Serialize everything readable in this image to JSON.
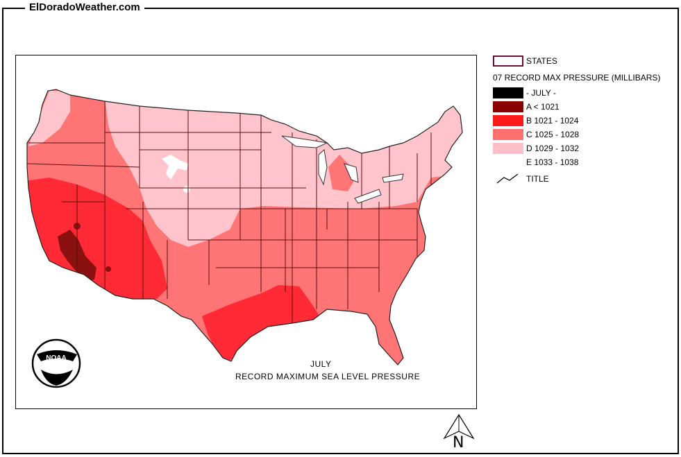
{
  "site": {
    "title": "ElDoradoWeather.com"
  },
  "map": {
    "caption_month": "JULY",
    "caption_title": "RECORD MAXIMUM SEA LEVEL PRESSURE",
    "logo_text": "NOAA",
    "north_label": "N"
  },
  "legend": {
    "states_label": "STATES",
    "layer_title": "07 RECORD MAX PRESSURE (MILLIBARS)",
    "items": [
      {
        "label": "- JULY -",
        "color": "#000000"
      },
      {
        "label": "A < 1021",
        "color": "#8b0000"
      },
      {
        "label": "B 1021 - 1024",
        "color": "#ff1a1a"
      },
      {
        "label": "C 1025 - 1028",
        "color": "#ff7070"
      },
      {
        "label": "D 1029 - 1032",
        "color": "#ffbfc8"
      },
      {
        "label": "E 1033 - 1038",
        "color": "#ffffff"
      }
    ],
    "title_line_label": "TITLE"
  },
  "colors": {
    "A": "#8b1010",
    "B": "#ff2a35",
    "C": "#ff7474",
    "D": "#ffc4cc",
    "E": "#ffffff",
    "state_border": "#5a1010",
    "states_swatch_border": "#6a0f3a"
  }
}
